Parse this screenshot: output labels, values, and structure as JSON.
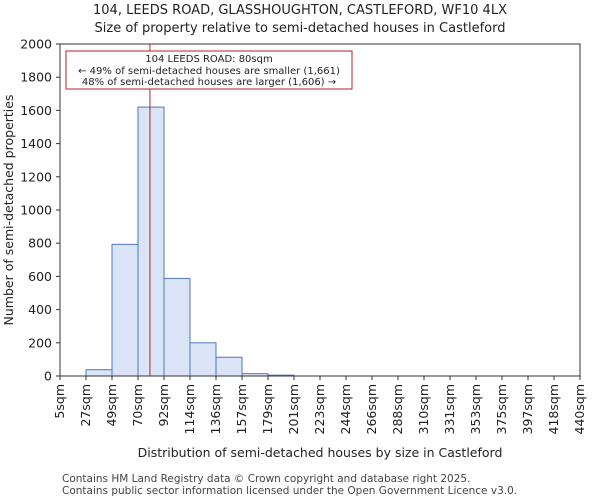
{
  "chart_data": {
    "type": "histogram",
    "title": "104, LEEDS ROAD, GLASSHOUGHTON, CASTLEFORD, WF10 4LX",
    "subtitle": "Size of property relative to semi-detached houses in Castleford",
    "xlabel": "Distribution of semi-detached houses by size in Castleford",
    "ylabel": "Number of semi-detached properties",
    "categories": [
      "5sqm",
      "27sqm",
      "49sqm",
      "70sqm",
      "92sqm",
      "114sqm",
      "136sqm",
      "157sqm",
      "179sqm",
      "201sqm",
      "223sqm",
      "244sqm",
      "266sqm",
      "288sqm",
      "310sqm",
      "331sqm",
      "353sqm",
      "375sqm",
      "397sqm",
      "418sqm",
      "440sqm"
    ],
    "values": [
      0,
      38,
      793,
      1620,
      588,
      200,
      113,
      14,
      5,
      0,
      0,
      0,
      0,
      0,
      0,
      0,
      0,
      0,
      0,
      0
    ],
    "ylim": [
      0,
      2000
    ],
    "yticks": [
      0,
      200,
      400,
      600,
      800,
      1000,
      1200,
      1400,
      1600,
      1800,
      2000
    ],
    "marker_value": 80,
    "marker_bin_position": 3.46,
    "bar_fill": "#dbe4f6",
    "bar_edge": "#4a7ac0",
    "marker_color": "#b22222",
    "annotation": {
      "line1": "104 LEEDS ROAD: 80sqm",
      "line2": "← 49% of semi-detached houses are smaller (1,661)",
      "line3": "48% of semi-detached houses are larger (1,606) →"
    }
  },
  "footer": {
    "line1": "Contains HM Land Registry data © Crown copyright and database right 2025.",
    "line2": "Contains public sector information licensed under the Open Government Licence v3.0."
  }
}
